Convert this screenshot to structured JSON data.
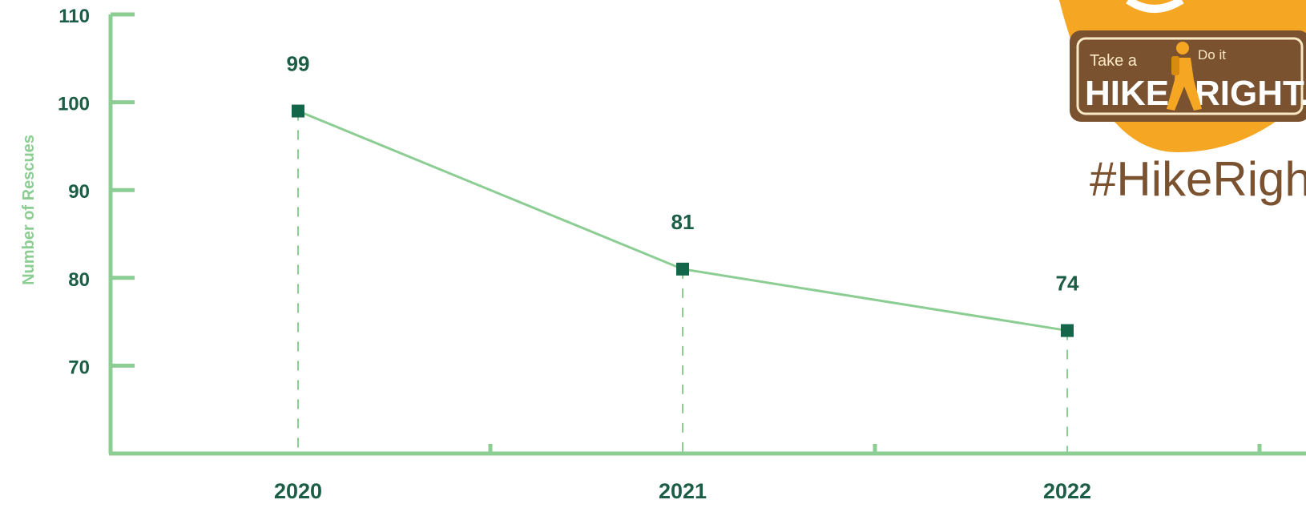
{
  "chart_data": {
    "type": "line",
    "x": [
      "2020",
      "2021",
      "2022"
    ],
    "series": [
      {
        "values": [
          99,
          81,
          74
        ]
      }
    ],
    "data_labels": [
      "99",
      "81",
      "74"
    ],
    "ylabel": "Number of Rescues",
    "ylim": [
      60,
      110
    ],
    "yticks": [
      70,
      80,
      90,
      100,
      110
    ],
    "grid": false,
    "colors": {
      "axis": "#8ccd93",
      "line": "#8ccd93",
      "marker": "#14664a",
      "label": "#1b5e45"
    }
  },
  "logo": {
    "take_a": "Take a",
    "do_it": "Do it",
    "hike": "HIKE.",
    "right": "RIGHT.",
    "hashtag": "#HikeRight",
    "colors": {
      "orange": "#f5a623",
      "brown": "#7a5230",
      "cream": "#fbe8c4"
    }
  }
}
